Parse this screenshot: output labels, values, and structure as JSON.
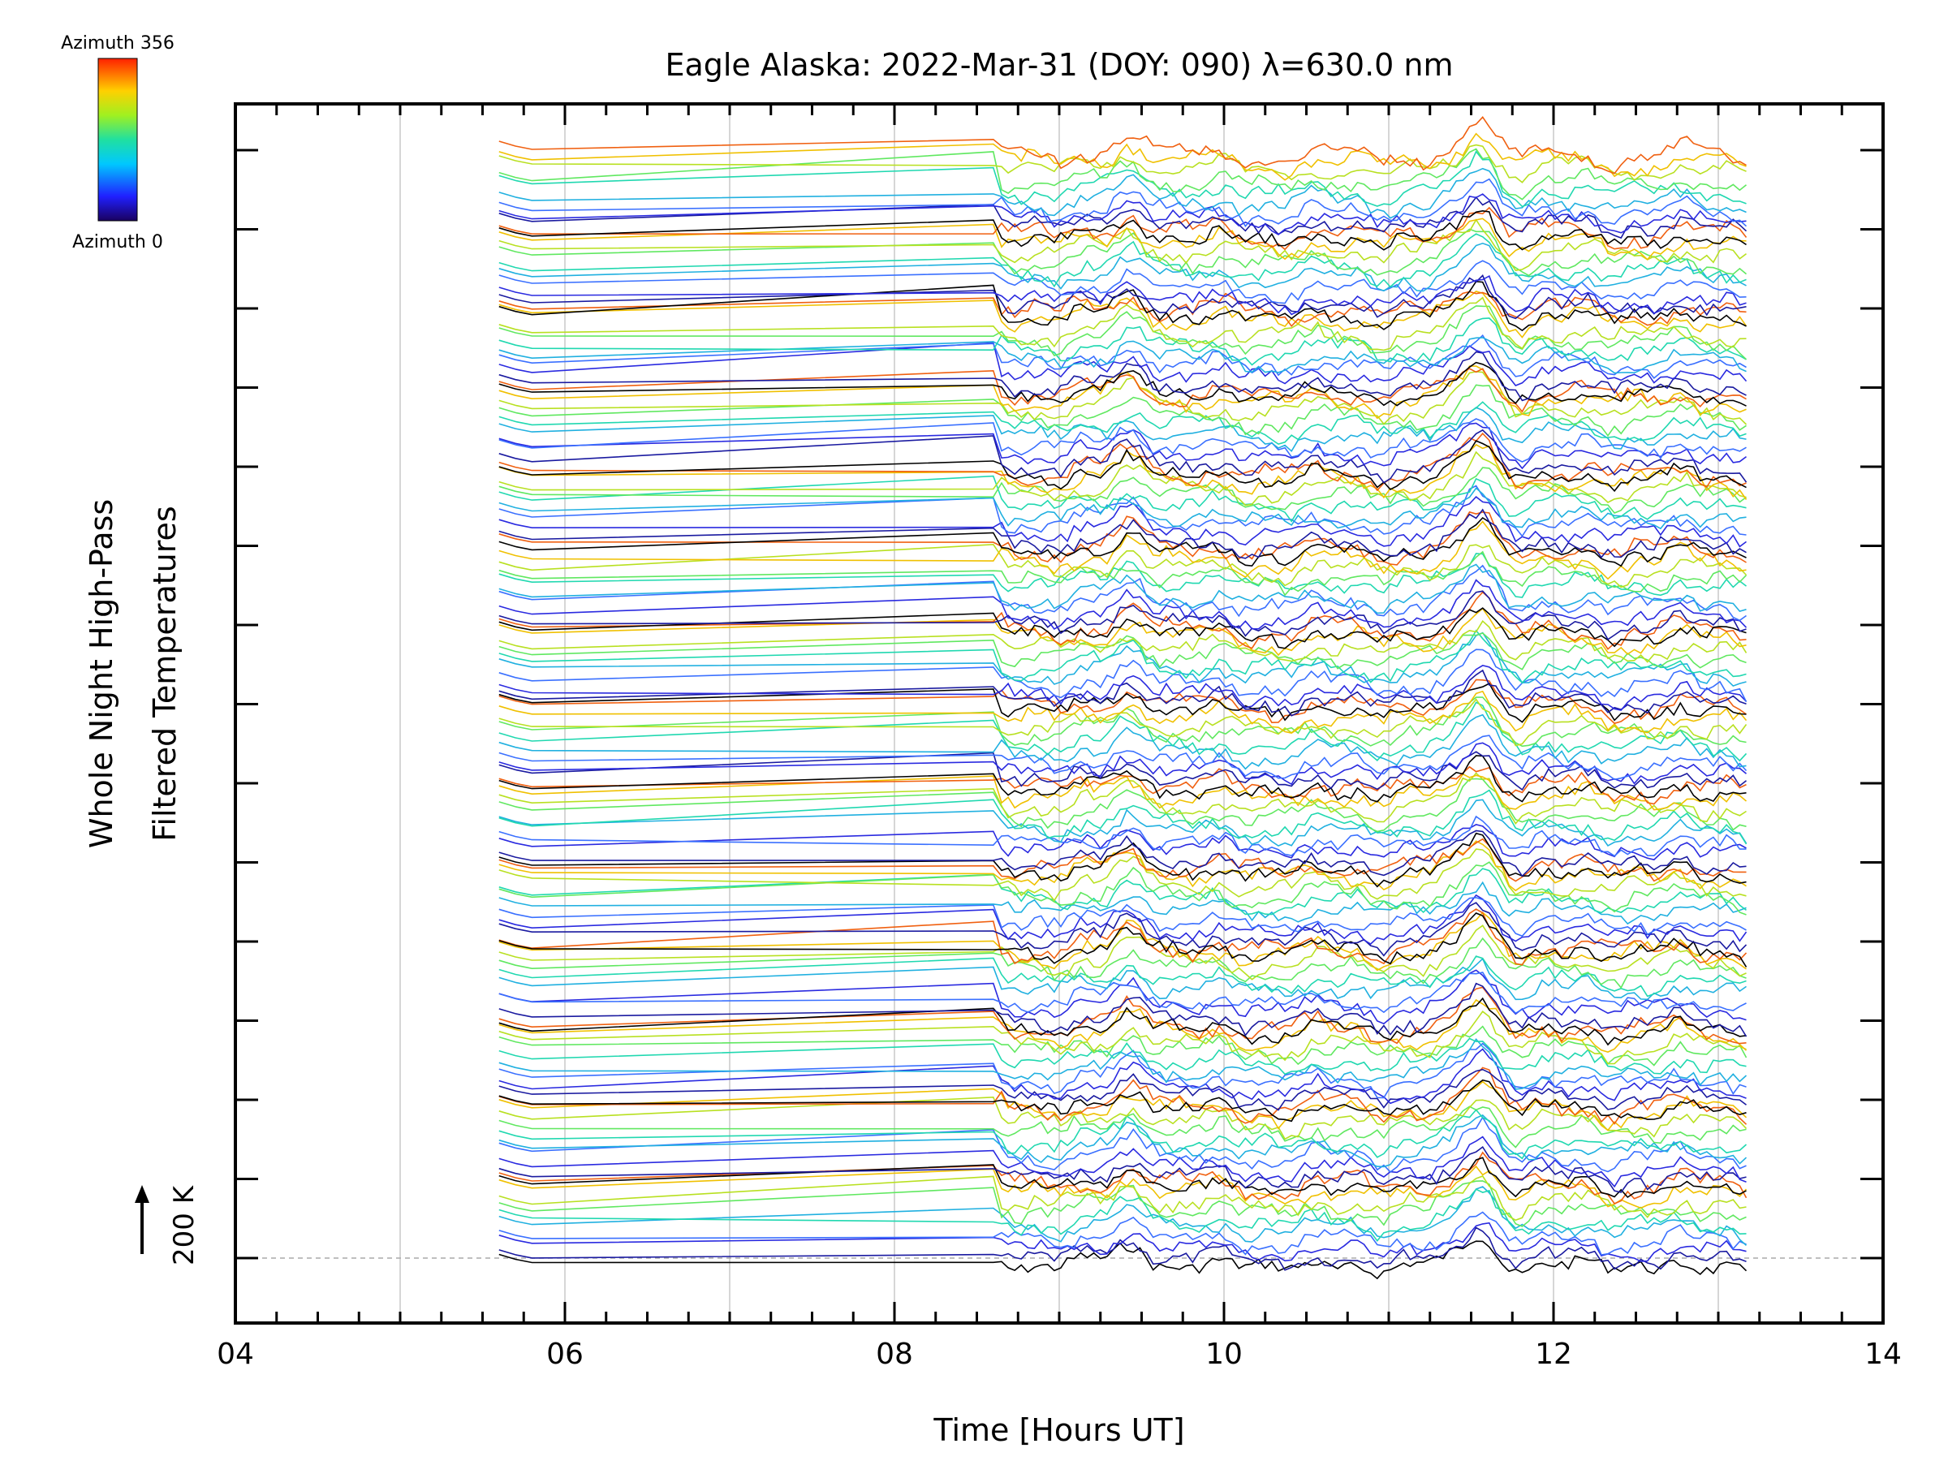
{
  "chart_data": {
    "type": "line",
    "title": "Eagle Alaska: 2022-Mar-31 (DOY: 090) λ=630.0 nm",
    "xlabel": "Time [Hours UT]",
    "ylabel_line1": "Whole Night High-Pass",
    "ylabel_line2": "Filtered Temperatures",
    "scale_label": "200 K",
    "xlim": [
      4,
      14
    ],
    "xticks": [
      "04",
      "06",
      "08",
      "10",
      "12",
      "14"
    ],
    "xtick_values": [
      4,
      6,
      8,
      10,
      12,
      14
    ],
    "vertical_gridlines": [
      5,
      6,
      7,
      8,
      9,
      10,
      11,
      12,
      13
    ],
    "colorbar": {
      "top_label": "Azimuth 356",
      "bottom_label": "Azimuth 0",
      "colormap": "rainbow"
    },
    "series_summary": {
      "num_traces": 14,
      "directions_per_trace": 10,
      "start_time": 5.6,
      "gap_end_time": 8.6,
      "end_time": 13.2,
      "offset_per_trace_K": 200
    },
    "colors": {
      "axis": "#000000",
      "grid": "#c8c8c8",
      "zero_line": "#aaaaaa"
    }
  }
}
